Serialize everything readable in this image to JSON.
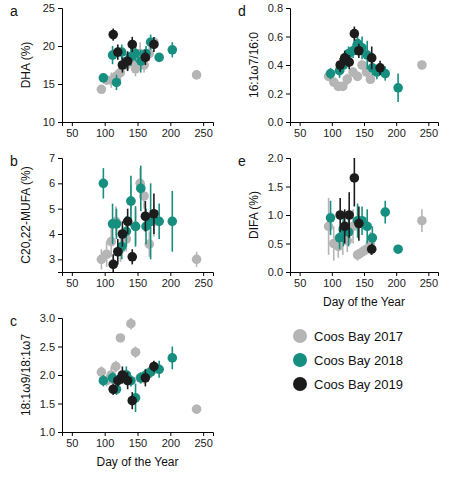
{
  "chart_data": [
    {
      "type": "scatter",
      "title": "a",
      "y_label": "DHA (%)",
      "xlim": [
        35,
        265
      ],
      "xticks": [
        50,
        100,
        150,
        200,
        250
      ],
      "ylim": [
        10,
        25
      ],
      "yticks": [
        10,
        15,
        20,
        25
      ],
      "series": [
        {
          "color": "#b5b5b5",
          "marker": "circle",
          "x": [
            95,
            103,
            110,
            117,
            124,
            133,
            140,
            147,
            154,
            160,
            168,
            175,
            240
          ],
          "values": [
            14.3,
            15.5,
            15.5,
            16,
            16.5,
            17.5,
            18,
            17,
            19,
            17.5,
            19,
            20.5,
            16.2
          ],
          "errors": [
            0.5,
            0.5,
            1,
            0.8,
            1,
            0.5,
            0.7,
            1,
            1.5,
            1,
            1,
            0.5,
            0.3
          ]
        },
        {
          "color": "#178f80",
          "marker": "circle",
          "x": [
            98,
            112,
            118,
            126,
            133,
            140,
            147,
            155,
            163,
            170,
            183,
            203
          ],
          "values": [
            15.8,
            18.8,
            15.2,
            19.2,
            18,
            18.6,
            19,
            18,
            19,
            20.5,
            18.5,
            19.5
          ],
          "errors": [
            0.5,
            1.2,
            1,
            1,
            1,
            1.2,
            1,
            1.5,
            1,
            1,
            0.5,
            1
          ]
        },
        {
          "color": "#1c1c1c",
          "marker": "circle",
          "x": [
            113,
            120,
            127,
            135,
            142,
            162,
            175
          ],
          "values": [
            21.5,
            19.2,
            17.5,
            18,
            20.2,
            18.5,
            20.2
          ],
          "errors": [
            0.8,
            1,
            1,
            1.3,
            1,
            1,
            1
          ]
        }
      ]
    },
    {
      "type": "scatter",
      "title": "b",
      "y_label": "C20,22-MUFA (%)",
      "xlim": [
        35,
        265
      ],
      "xticks": [
        50,
        100,
        150,
        200,
        250
      ],
      "ylim": [
        2.5,
        7
      ],
      "yticks": [
        3,
        4,
        5,
        6,
        7
      ],
      "series": [
        {
          "color": "#b5b5b5",
          "marker": "circle",
          "x": [
            95,
            103,
            110,
            117,
            124,
            133,
            140,
            147,
            154,
            160,
            168,
            175,
            240
          ],
          "values": [
            3.0,
            3.2,
            3.7,
            4.5,
            3.4,
            3.8,
            5.3,
            4.3,
            6.0,
            5.5,
            3.6,
            4.5,
            3.0
          ],
          "errors": [
            0.4,
            0.5,
            0.6,
            0.6,
            0.5,
            0.5,
            0.6,
            0.7,
            0.6,
            0.5,
            0.5,
            0.6,
            0.3
          ]
        },
        {
          "color": "#178f80",
          "marker": "circle",
          "x": [
            98,
            112,
            118,
            126,
            133,
            140,
            147,
            155,
            163,
            170,
            183,
            203
          ],
          "values": [
            6.0,
            4.4,
            4.4,
            3.5,
            4.1,
            5.3,
            4.3,
            5.8,
            4.3,
            4.5,
            4.5,
            4.5
          ],
          "errors": [
            0.6,
            0.8,
            0.6,
            0.5,
            0.6,
            1,
            0.8,
            0.9,
            0.7,
            1.5,
            0.7,
            1.2
          ]
        },
        {
          "color": "#1c1c1c",
          "marker": "circle",
          "x": [
            113,
            120,
            127,
            135,
            142,
            162,
            175
          ],
          "values": [
            2.8,
            3.3,
            4.0,
            4.5,
            3.1,
            4.7,
            4.8
          ],
          "errors": [
            0.4,
            0.5,
            0.5,
            0.5,
            0.3,
            0.6,
            0.8
          ]
        }
      ]
    },
    {
      "type": "scatter",
      "title": "c",
      "y_label": "18:1ω9/18:1ω7",
      "x_label": "Day of the Year",
      "xlim": [
        35,
        265
      ],
      "xticks": [
        50,
        100,
        150,
        200,
        250
      ],
      "ylim": [
        1,
        3
      ],
      "yticks": [
        {
          "value": 1,
          "label": "1.0"
        },
        1.5,
        {
          "value": 2,
          "label": "2.0"
        },
        2.5,
        {
          "value": 3,
          "label": "3.0"
        }
      ],
      "series": [
        {
          "color": "#b5b5b5",
          "marker": "circle",
          "x": [
            95,
            103,
            110,
            117,
            124,
            133,
            140,
            147,
            154,
            160,
            168,
            175,
            240
          ],
          "values": [
            2.05,
            1.9,
            2.0,
            2.15,
            2.65,
            2.0,
            2.9,
            2.4,
            1.95,
            1.95,
            2.05,
            2.1,
            1.4
          ],
          "errors": [
            0.1,
            0.1,
            0.15,
            0.1,
            0.05,
            0.1,
            0.1,
            0.1,
            0.1,
            0.1,
            0.1,
            0.1,
            0.08
          ]
        },
        {
          "color": "#178f80",
          "marker": "circle",
          "x": [
            98,
            112,
            118,
            126,
            133,
            140,
            147,
            155,
            163,
            170,
            183,
            203
          ],
          "values": [
            1.9,
            1.95,
            1.75,
            1.95,
            2.0,
            1.9,
            1.6,
            1.95,
            2.0,
            2.05,
            2.1,
            2.3
          ],
          "errors": [
            0.1,
            0.1,
            0.1,
            0.1,
            0.15,
            0.1,
            0.25,
            0.1,
            0.1,
            0.1,
            0.15,
            0.2
          ]
        },
        {
          "color": "#1c1c1c",
          "marker": "circle",
          "x": [
            113,
            120,
            127,
            135,
            142,
            162,
            175
          ],
          "values": [
            1.75,
            1.9,
            2.0,
            1.9,
            1.55,
            1.95,
            2.15
          ],
          "errors": [
            0.1,
            0.1,
            0.15,
            0.15,
            0.15,
            0.15,
            0.1
          ]
        }
      ]
    },
    {
      "type": "scatter",
      "title": "d",
      "y_label": "16:1ω7/16:0",
      "xlim": [
        35,
        265
      ],
      "xticks": [
        50,
        100,
        150,
        200,
        250
      ],
      "ylim": [
        0,
        0.8
      ],
      "yticks": [
        {
          "value": 0,
          "label": "0.0"
        },
        0.2,
        0.4,
        0.6,
        0.8
      ],
      "series": [
        {
          "color": "#b5b5b5",
          "marker": "circle",
          "x": [
            95,
            103,
            110,
            117,
            124,
            133,
            140,
            147,
            154,
            160,
            240
          ],
          "values": [
            0.32,
            0.28,
            0.25,
            0.25,
            0.3,
            0.35,
            0.32,
            0.4,
            0.35,
            0.3,
            0.4
          ],
          "errors": [
            0.03,
            0.03,
            0.03,
            0.03,
            0.04,
            0.03,
            0.03,
            0.03,
            0.03,
            0.03,
            0.03
          ]
        },
        {
          "color": "#178f80",
          "marker": "circle",
          "x": [
            98,
            112,
            118,
            126,
            133,
            140,
            147,
            155,
            163,
            170,
            183,
            203
          ],
          "values": [
            0.34,
            0.36,
            0.4,
            0.48,
            0.5,
            0.55,
            0.52,
            0.47,
            0.38,
            0.35,
            0.34,
            0.24
          ],
          "errors": [
            0.04,
            0.05,
            0.05,
            0.05,
            0.05,
            0.05,
            0.08,
            0.1,
            0.05,
            0.05,
            0.05,
            0.1
          ]
        },
        {
          "color": "#1c1c1c",
          "marker": "circle",
          "x": [
            113,
            120,
            127,
            135,
            142,
            162,
            175
          ],
          "values": [
            0.4,
            0.45,
            0.42,
            0.62,
            0.5,
            0.45,
            0.38
          ],
          "errors": [
            0.05,
            0.05,
            0.05,
            0.05,
            0.05,
            0.08,
            0.05
          ]
        }
      ]
    },
    {
      "type": "scatter",
      "title": "e",
      "y_label": "DIFA (%)",
      "x_label": "Day of the Year",
      "legend": "bottom-right",
      "xlim": [
        35,
        265
      ],
      "xticks": [
        50,
        100,
        150,
        200,
        250
      ],
      "ylim": [
        0,
        2
      ],
      "yticks": [
        {
          "value": 0,
          "label": "0.0"
        },
        0.5,
        {
          "value": 1,
          "label": "1.0"
        },
        1.5,
        {
          "value": 2,
          "label": "2.0"
        }
      ],
      "series": [
        {
          "name": "Coos Bay 2017",
          "color": "#b5b5b5",
          "marker": "circle",
          "x": [
            95,
            103,
            110,
            117,
            124,
            133,
            140,
            147,
            154,
            160,
            240
          ],
          "values": [
            0.8,
            0.5,
            0.45,
            0.6,
            0.55,
            0.8,
            0.3,
            0.35,
            0.4,
            0.5,
            0.9
          ],
          "errors": [
            0.5,
            0.3,
            0.2,
            0.3,
            0.2,
            0.3,
            0.1,
            0.1,
            0.1,
            0.2,
            0.2
          ]
        },
        {
          "name": "Coos Bay 2018",
          "color": "#178f80",
          "marker": "circle",
          "x": [
            98,
            112,
            118,
            126,
            140,
            147,
            155,
            163,
            183,
            203
          ],
          "values": [
            0.95,
            0.6,
            0.75,
            0.7,
            0.9,
            0.9,
            0.8,
            0.6,
            1.05,
            0.4
          ],
          "errors": [
            0.3,
            0.2,
            0.3,
            0.25,
            0.3,
            0.25,
            0.3,
            0.2,
            0.2,
            0.05
          ]
        },
        {
          "name": "Coos Bay 2019",
          "color": "#1c1c1c",
          "marker": "circle",
          "x": [
            113,
            120,
            127,
            135,
            142,
            162
          ],
          "values": [
            1.0,
            0.8,
            1.0,
            1.65,
            0.85,
            0.4
          ],
          "errors": [
            0.3,
            0.3,
            0.4,
            0.5,
            0.3,
            0.1
          ]
        }
      ]
    }
  ]
}
